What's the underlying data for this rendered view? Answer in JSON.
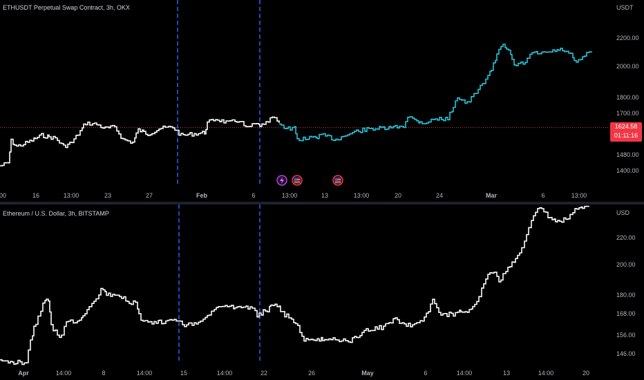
{
  "panes": [
    {
      "id": "top",
      "title": "ETHUSDT Perpetual Swap Contract, 3h, OKX",
      "unit": "USDT",
      "y_ticks": [
        {
          "label": "2200.00",
          "value": 2200
        },
        {
          "label": "2000.00",
          "value": 2000
        },
        {
          "label": "1800.00",
          "value": 1800
        },
        {
          "label": "1700.00",
          "value": 1700
        },
        {
          "label": "1480.00",
          "value": 1480
        },
        {
          "label": "1400.00",
          "value": 1400
        }
      ],
      "x_ticks": [
        {
          "label": "00",
          "bold": false
        },
        {
          "label": "16",
          "bold": false
        },
        {
          "label": "13:00",
          "bold": false
        },
        {
          "label": "23",
          "bold": false
        },
        {
          "label": "27",
          "bold": false
        },
        {
          "label": "Feb",
          "bold": true
        },
        {
          "label": "6",
          "bold": false
        },
        {
          "label": "13:00",
          "bold": false
        },
        {
          "label": "13",
          "bold": false
        },
        {
          "label": "13:00",
          "bold": false
        },
        {
          "label": "20",
          "bold": false
        },
        {
          "label": "24",
          "bold": false
        },
        {
          "label": "Mar",
          "bold": true
        },
        {
          "label": "6",
          "bold": false
        },
        {
          "label": "13:00",
          "bold": false
        }
      ],
      "price_label": {
        "price": "1624.58",
        "countdown": "01:11:16",
        "value": 1624.58
      },
      "event_icons": [
        "lightning-icon",
        "us-flag-icon",
        "us-flag-icon"
      ],
      "colors": {
        "line": "#ffffff",
        "projection": "#26c6da",
        "price_line": "#f23645"
      }
    },
    {
      "id": "bottom",
      "title": "Ethereum / U.S. Dollar, 3h, BITSTAMP",
      "unit": "USD",
      "y_ticks": [
        {
          "label": "220.00",
          "value": 220
        },
        {
          "label": "200.00",
          "value": 200
        },
        {
          "label": "180.00",
          "value": 180
        },
        {
          "label": "168.00",
          "value": 168
        },
        {
          "label": "156.00",
          "value": 156
        },
        {
          "label": "146.00",
          "value": 146
        }
      ],
      "x_ticks": [
        {
          "label": "Apr",
          "bold": true
        },
        {
          "label": "14:00",
          "bold": false
        },
        {
          "label": "8",
          "bold": false
        },
        {
          "label": "14:00",
          "bold": false
        },
        {
          "label": "15",
          "bold": false
        },
        {
          "label": "14:00",
          "bold": false
        },
        {
          "label": "22",
          "bold": false
        },
        {
          "label": "26",
          "bold": false
        },
        {
          "label": "May",
          "bold": true
        },
        {
          "label": "6",
          "bold": false
        },
        {
          "label": "14:00",
          "bold": false
        },
        {
          "label": "13",
          "bold": false
        },
        {
          "label": "14:00",
          "bold": false
        },
        {
          "label": "20",
          "bold": false
        }
      ],
      "colors": {
        "line": "#ffffff"
      }
    }
  ],
  "dashed_lines_color": "#2962ff"
}
